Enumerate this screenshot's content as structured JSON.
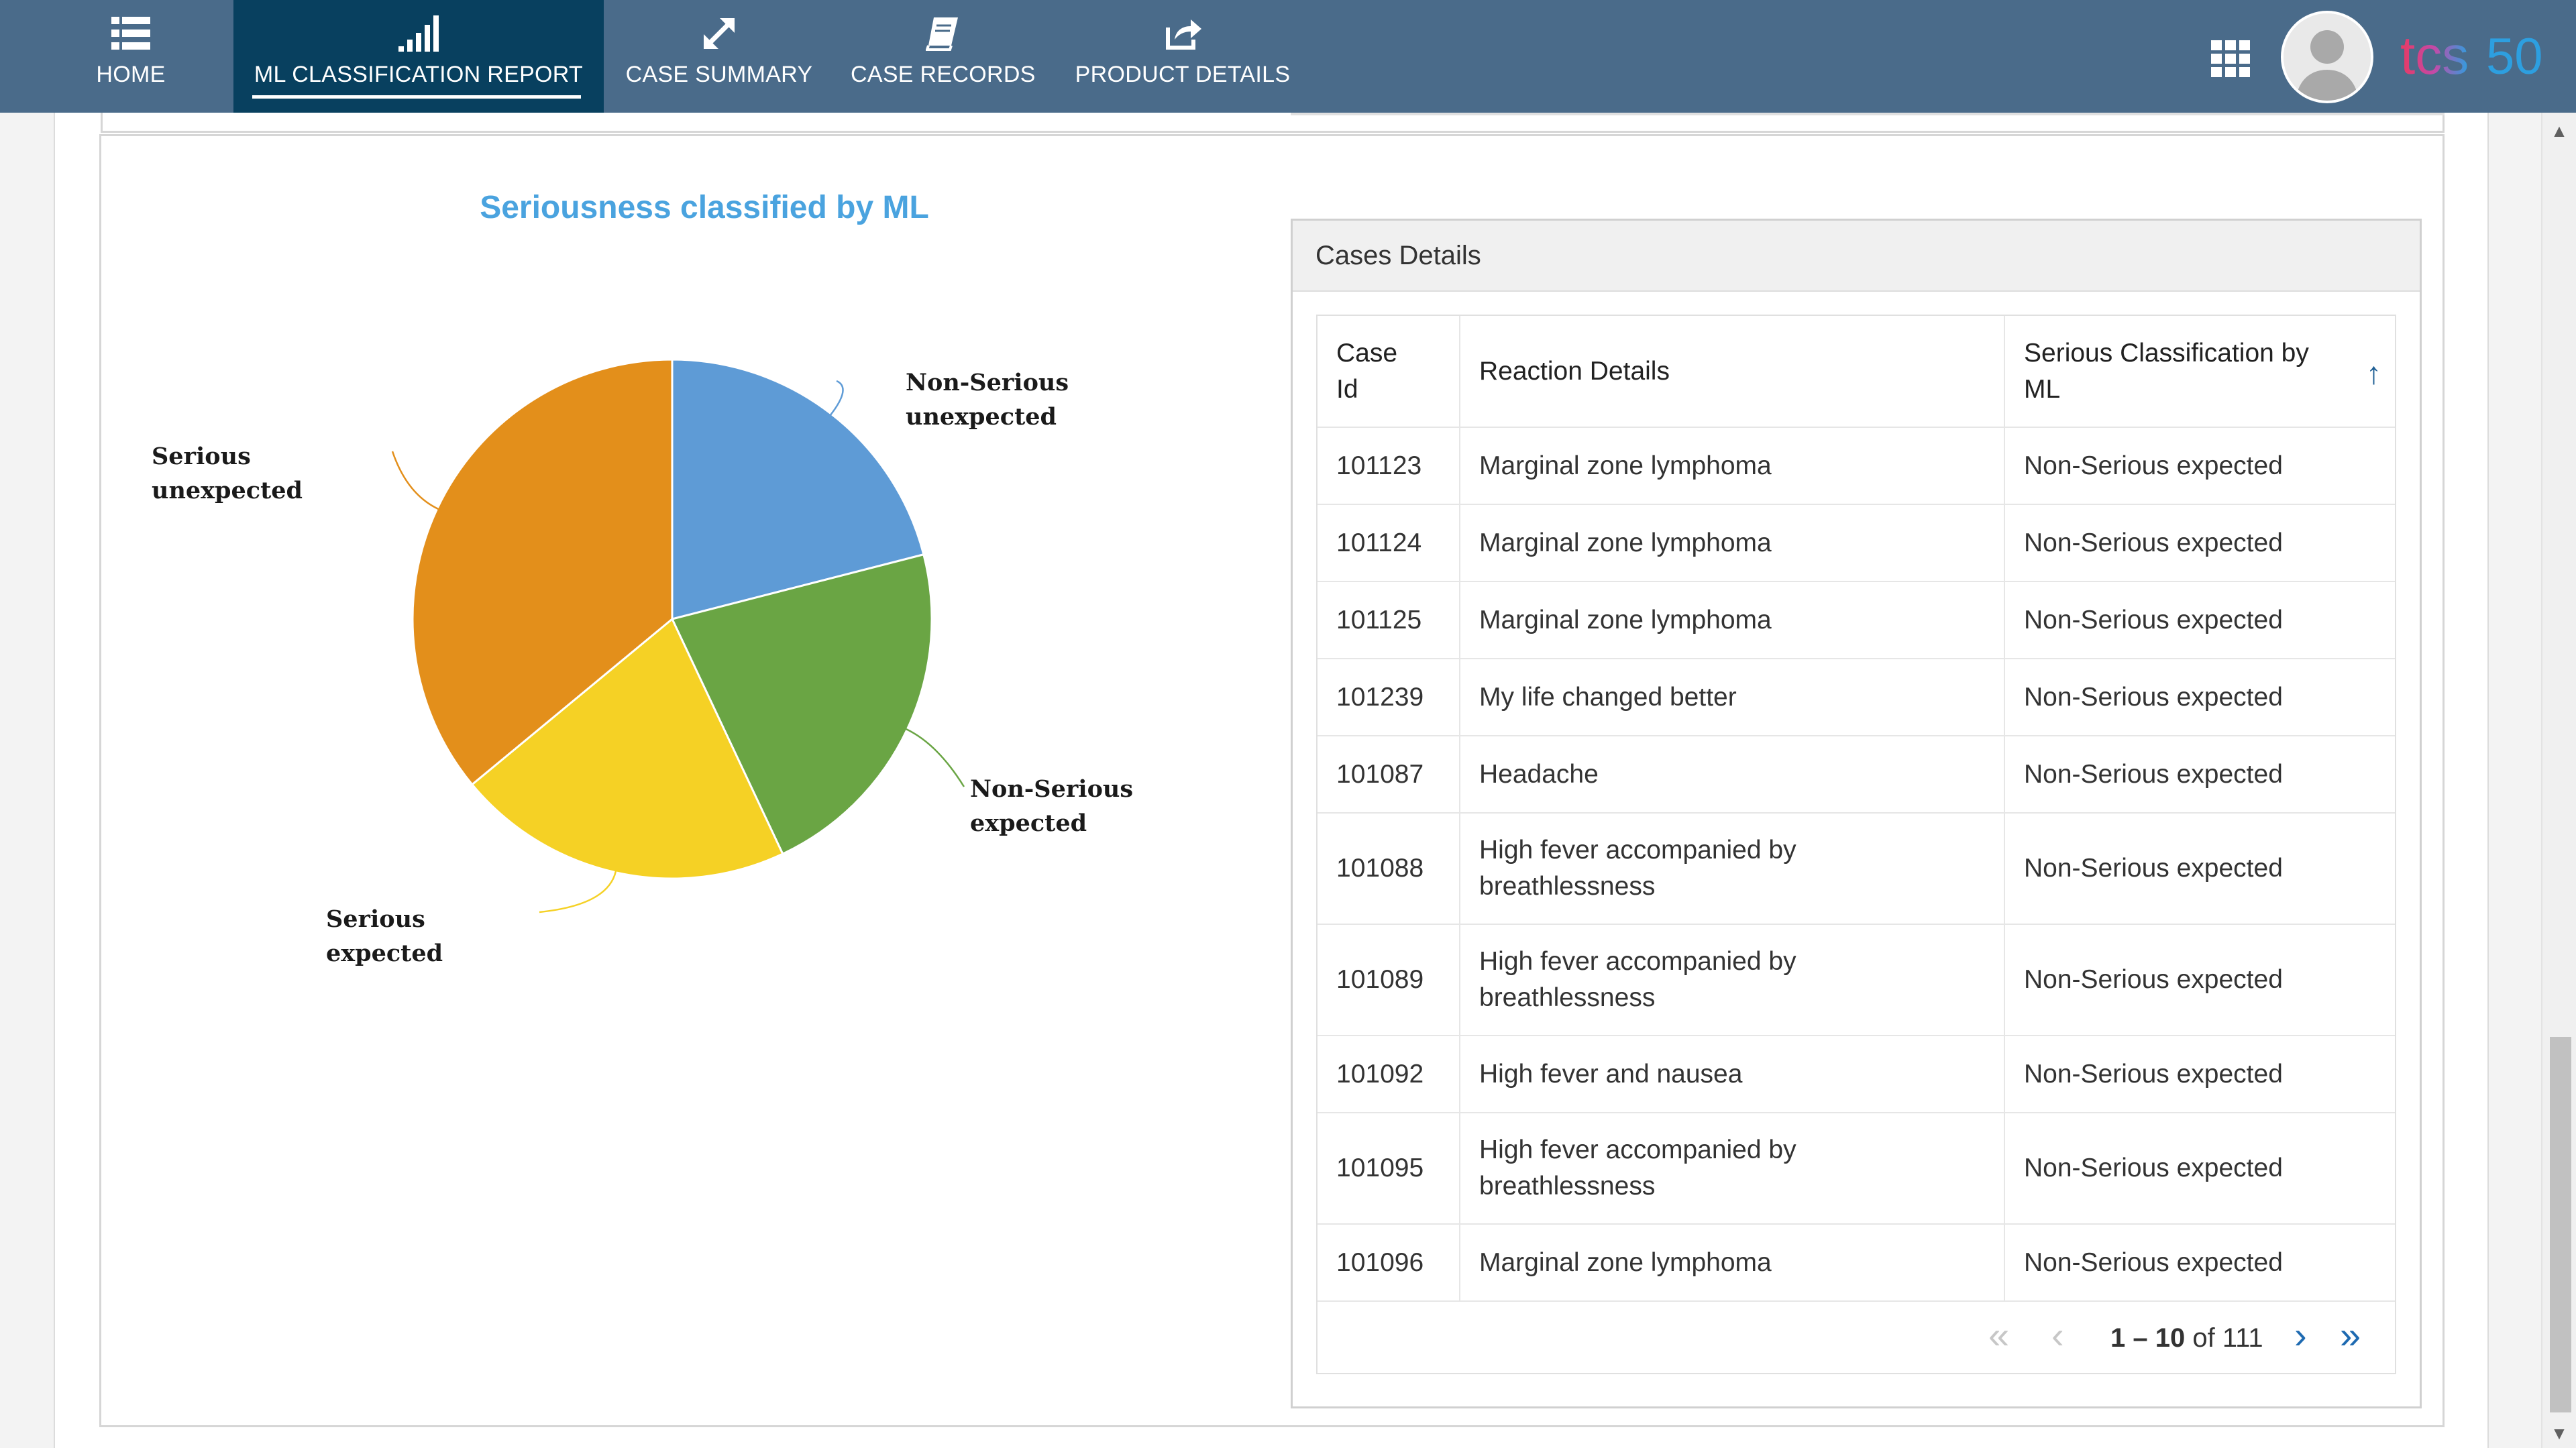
{
  "nav": {
    "items": [
      {
        "label": "HOME",
        "icon": "list-icon",
        "active": false
      },
      {
        "label": "ML CLASSIFICATION REPORT",
        "icon": "bar-signal-icon",
        "active": true
      },
      {
        "label": "CASE SUMMARY",
        "icon": "expand-arrows-icon",
        "active": false
      },
      {
        "label": "CASE RECORDS",
        "icon": "book-icon",
        "active": false
      },
      {
        "label": "PRODUCT DETAILS",
        "icon": "share-icon",
        "active": false
      }
    ],
    "brand": {
      "text_a": "tcs",
      "text_b": "50"
    }
  },
  "colors": {
    "navbar": "#4a6b8a",
    "nav_active": "#08405f",
    "chart_title": "#4aa3df",
    "pager_link": "#1e6ab1"
  },
  "chart": {
    "title": "Seriousness classified by ML",
    "chart_data": {
      "type": "pie",
      "title": "Seriousness classified by ML",
      "slices": [
        {
          "name": "Non-Serious unexpected",
          "value": 21,
          "color": "#5e9bd6"
        },
        {
          "name": "Non-Serious expected",
          "value": 22,
          "color": "#6aa544"
        },
        {
          "name": "Serious expected",
          "value": 21,
          "color": "#f5d125"
        },
        {
          "name": "Serious unexpected",
          "value": 36,
          "color": "#e38f1b"
        }
      ],
      "labels": {
        "nsu_1": "Non-Serious",
        "nsu_2": "unexpected",
        "nse_1": "Non-Serious",
        "nse_2": "expected",
        "se_1": "Serious",
        "se_2": "expected",
        "su_1": "Serious",
        "su_2": "unexpected"
      }
    }
  },
  "cases": {
    "title": "Cases Details",
    "columns": {
      "id_1": "Case",
      "id_2": "Id",
      "reaction": "Reaction Details",
      "class_1": "Serious Classification by",
      "class_2": "ML"
    },
    "rows": [
      {
        "id": "101123",
        "reaction_1": "Marginal zone lymphoma",
        "reaction_2": "",
        "classification": "Non-Serious expected"
      },
      {
        "id": "101124",
        "reaction_1": "Marginal zone lymphoma",
        "reaction_2": "",
        "classification": "Non-Serious expected"
      },
      {
        "id": "101125",
        "reaction_1": "Marginal zone lymphoma",
        "reaction_2": "",
        "classification": "Non-Serious expected"
      },
      {
        "id": "101239",
        "reaction_1": "My life changed better",
        "reaction_2": "",
        "classification": "Non-Serious expected"
      },
      {
        "id": "101087",
        "reaction_1": "Headache",
        "reaction_2": "",
        "classification": "Non-Serious expected"
      },
      {
        "id": "101088",
        "reaction_1": "High fever accompanied by",
        "reaction_2": "breathlessness",
        "classification": "Non-Serious expected"
      },
      {
        "id": "101089",
        "reaction_1": "High fever accompanied by",
        "reaction_2": "breathlessness",
        "classification": "Non-Serious expected"
      },
      {
        "id": "101092",
        "reaction_1": "High fever and nausea",
        "reaction_2": "",
        "classification": "Non-Serious expected"
      },
      {
        "id": "101095",
        "reaction_1": "High fever accompanied by",
        "reaction_2": "breathlessness",
        "classification": "Non-Serious expected"
      },
      {
        "id": "101096",
        "reaction_1": "Marginal zone lymphoma",
        "reaction_2": "",
        "classification": "Non-Serious expected"
      }
    ],
    "pager": {
      "range": "1 – 10",
      "of_label": "of",
      "total": "111"
    }
  }
}
